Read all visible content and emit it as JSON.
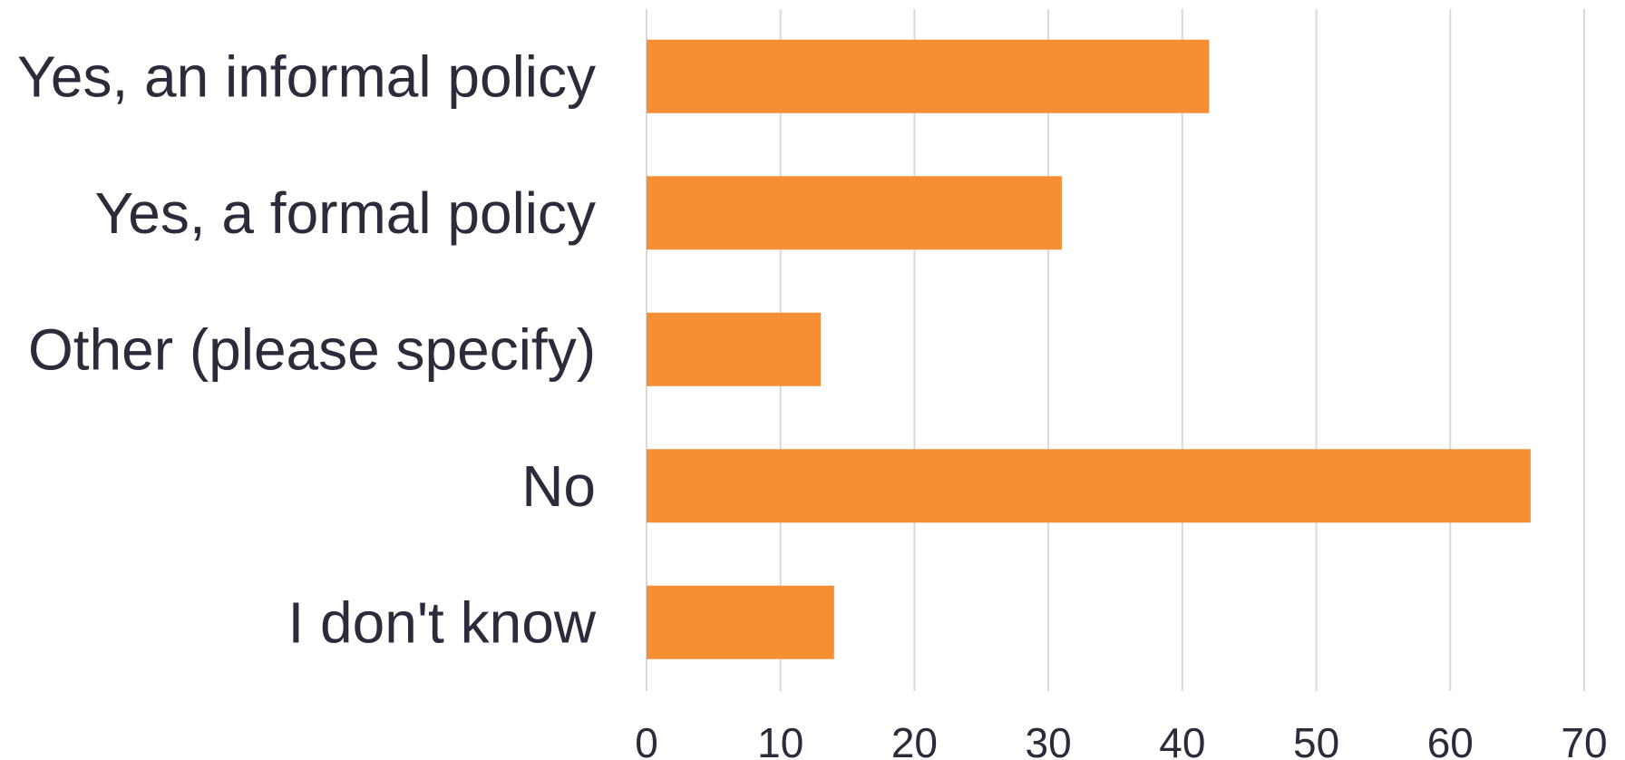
{
  "chart_data": {
    "type": "bar",
    "orientation": "horizontal",
    "title": "",
    "xlabel": "",
    "ylabel": "",
    "categories": [
      "Yes, an informal policy",
      "Yes, a formal policy",
      "Other (please specify)",
      "No",
      "I don't know"
    ],
    "values": [
      42,
      31,
      13,
      66,
      14
    ],
    "xlim": [
      0,
      70
    ],
    "xticks": [
      0,
      10,
      20,
      30,
      40,
      50,
      60,
      70
    ],
    "grid": true,
    "legend": "none",
    "bar_color": "#f68e35",
    "text_color": "#2b2b3b",
    "grid_color": "#d9d9d9"
  }
}
